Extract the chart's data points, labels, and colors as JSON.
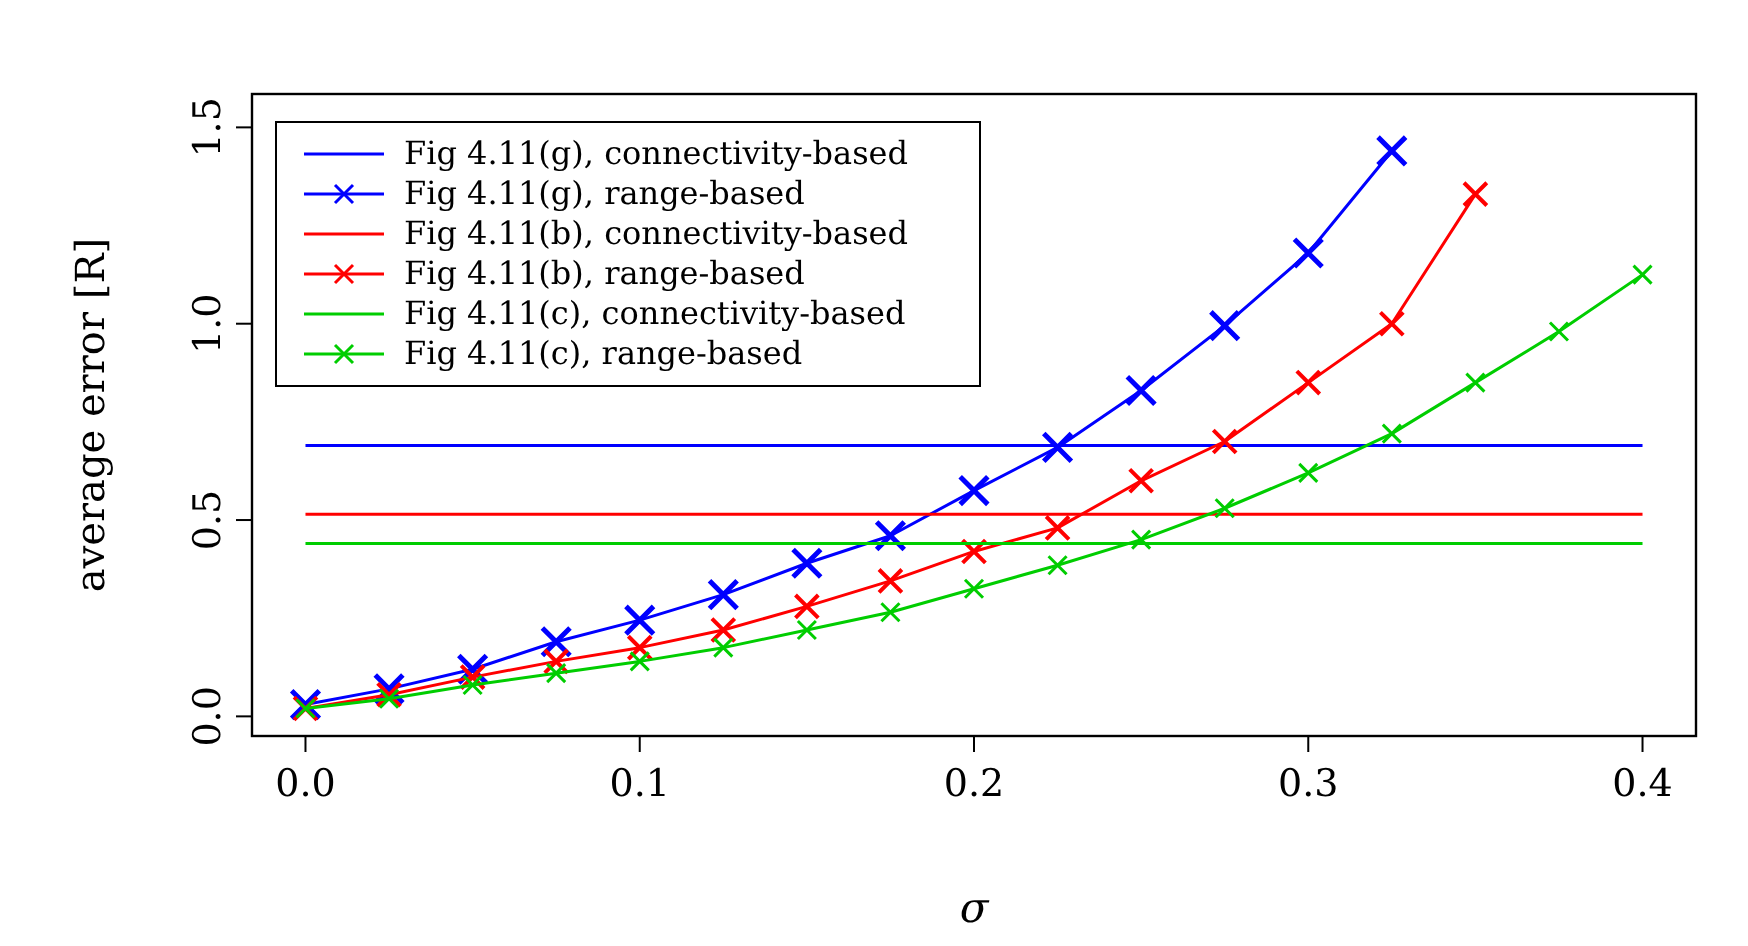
{
  "chart_data": {
    "type": "line",
    "xlabel": "σ",
    "ylabel": "average error [R]",
    "xlim": [
      -0.016,
      0.416
    ],
    "ylim": [
      -0.05,
      1.585
    ],
    "xticks": [
      {
        "value": 0,
        "label": "0.0"
      },
      0.1,
      0.2,
      0.3,
      0.4
    ],
    "yticks": [
      {
        "value": 0,
        "label": "0.0"
      },
      0.5,
      {
        "value": 1,
        "label": "1.0"
      },
      1.5
    ],
    "grid": false,
    "legend": "top left",
    "line_style": "solid",
    "x": [
      0,
      0.025,
      0.05,
      0.075,
      0.1,
      0.125,
      0.15,
      0.175,
      0.2,
      0.225,
      0.25,
      0.275,
      0.3,
      0.325,
      0.35,
      0.375,
      0.4
    ],
    "series": [
      {
        "name": "Fig 4.11(g), connectivity-based",
        "color": "#0000ff",
        "marker": "none",
        "x": [
          0,
          0.4
        ],
        "values": [
          0.69,
          0.69
        ]
      },
      {
        "name": "Fig 4.11(g), range-based",
        "color": "#0000ff",
        "marker": "cross",
        "x": [
          0,
          0.025,
          0.05,
          0.075,
          0.1,
          0.125,
          0.15,
          0.175,
          0.2,
          0.225,
          0.25,
          0.275,
          0.3,
          0.325
        ],
        "values": [
          0.03,
          0.07,
          0.12,
          0.19,
          0.245,
          0.31,
          0.39,
          0.46,
          0.575,
          0.685,
          0.83,
          0.995,
          1.18,
          1.44
        ]
      },
      {
        "name": "Fig 4.11(b), connectivity-based",
        "color": "#ff0000",
        "marker": "none",
        "x": [
          0,
          0.4
        ],
        "values": [
          0.515,
          0.515
        ]
      },
      {
        "name": "Fig 4.11(b), range-based",
        "color": "#ff0000",
        "marker": "cross",
        "x": [
          0,
          0.025,
          0.05,
          0.075,
          0.1,
          0.125,
          0.15,
          0.175,
          0.2,
          0.225,
          0.25,
          0.275,
          0.3,
          0.325,
          0.35
        ],
        "values": [
          0.02,
          0.055,
          0.1,
          0.14,
          0.175,
          0.22,
          0.28,
          0.345,
          0.42,
          0.48,
          0.6,
          0.7,
          0.85,
          1.0,
          1.33
        ]
      },
      {
        "name": "Fig 4.11(c), connectivity-based",
        "color": "#00cd00",
        "marker": "none",
        "x": [
          0,
          0.4
        ],
        "values": [
          0.44,
          0.44
        ]
      },
      {
        "name": "Fig 4.11(c), range-based",
        "color": "#00cd00",
        "marker": "cross",
        "values": [
          0.02,
          0.045,
          0.08,
          0.11,
          0.14,
          0.175,
          0.22,
          0.265,
          0.325,
          0.385,
          0.45,
          0.53,
          0.62,
          0.72,
          0.85,
          0.98,
          1.125
        ]
      }
    ]
  }
}
